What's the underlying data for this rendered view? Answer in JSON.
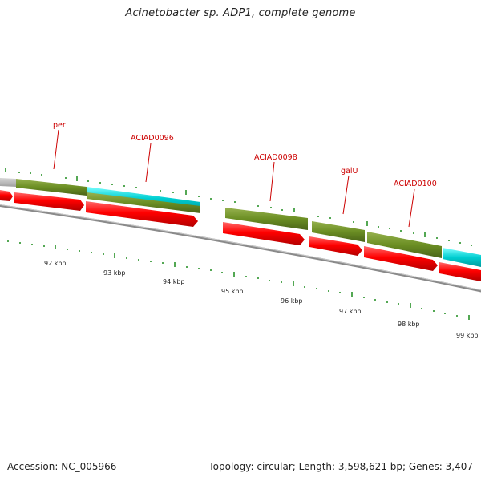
{
  "title": "Acinetobacter sp. ADP1, complete genome",
  "footer": {
    "accession": "Accession: NC_005966",
    "summary": "Topology: circular; Length: 3,598,621 bp; Genes: 3,407"
  },
  "colors": {
    "backbone": "#7f7f7f",
    "cds": "#ff0000",
    "gene": "#6b8e23",
    "rna": "#00ced1",
    "gap": "#b4b4b4",
    "tick": "#1a8a1a",
    "label": "#cc0000"
  },
  "gene_labels": [
    {
      "text": "per"
    },
    {
      "text": "ACIAD0096"
    },
    {
      "text": "ACIAD0098"
    },
    {
      "text": "galU"
    },
    {
      "text": "ACIAD0100"
    }
  ],
  "scale_labels": [
    "92 kbp",
    "93 kbp",
    "94 kbp",
    "95 kbp",
    "96 kbp",
    "97 kbp",
    "98 kbp",
    "99 kbp"
  ]
}
